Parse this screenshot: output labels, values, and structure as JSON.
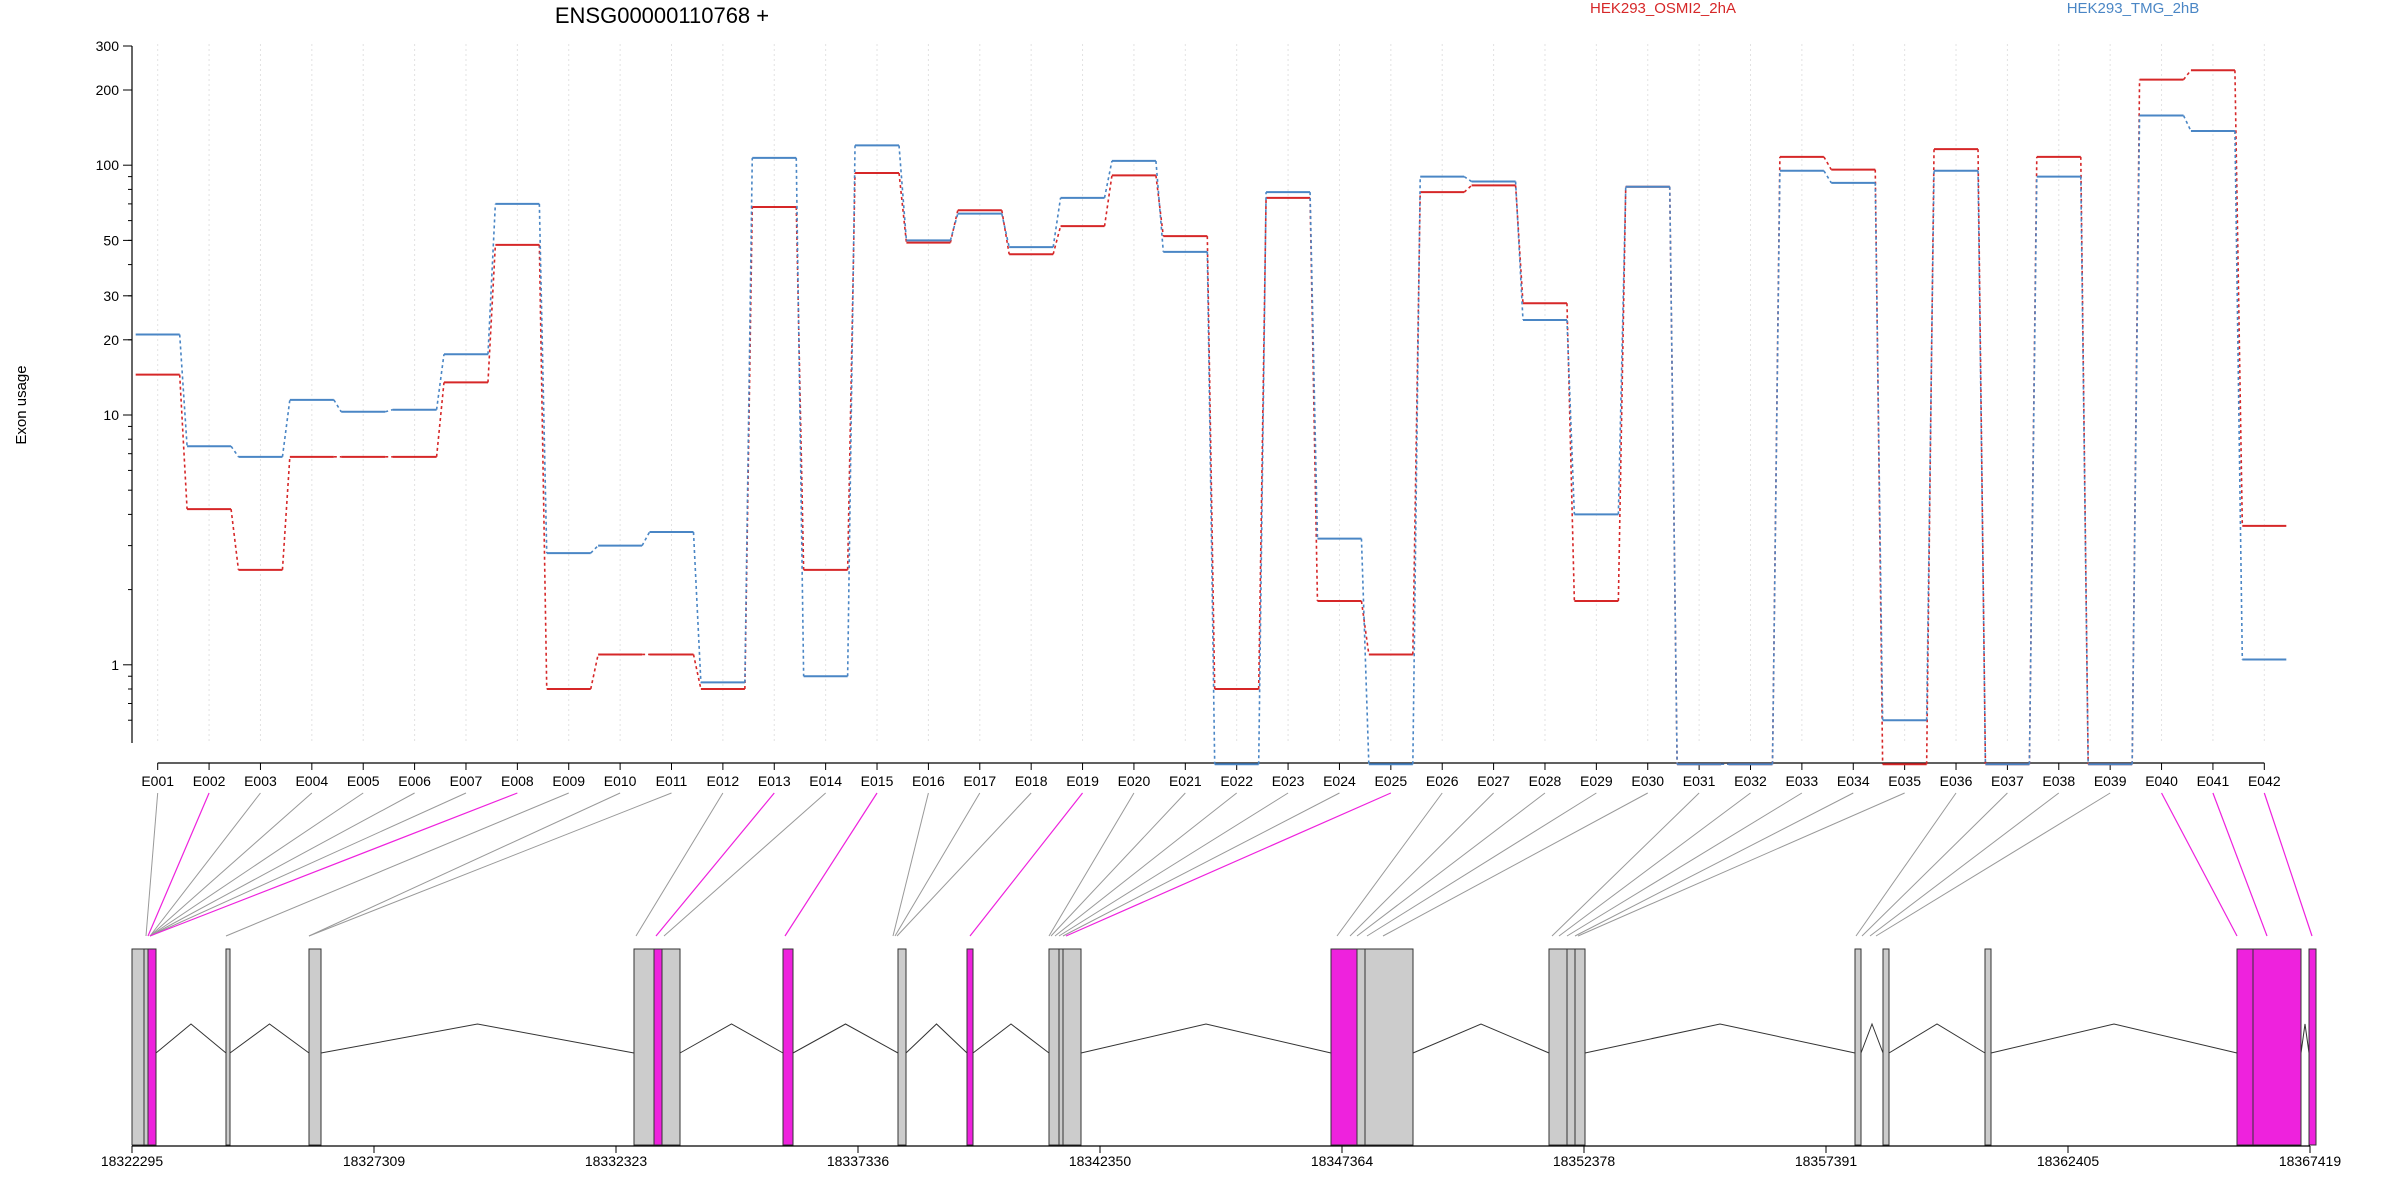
{
  "chart_data": {
    "type": "line",
    "title": "ENSG00000110768 +",
    "ylabel": "Exon usage",
    "yscale": "log",
    "ylim": [
      0.5,
      300
    ],
    "yticks_labeled": [
      1,
      10,
      20,
      30,
      50,
      100,
      200,
      300
    ],
    "categories": [
      "E001",
      "E002",
      "E003",
      "E004",
      "E005",
      "E006",
      "E007",
      "E008",
      "E009",
      "E010",
      "E011",
      "E012",
      "E013",
      "E014",
      "E015",
      "E016",
      "E017",
      "E018",
      "E019",
      "E020",
      "E021",
      "E022",
      "E023",
      "E024",
      "E025",
      "E026",
      "E027",
      "E028",
      "E029",
      "E030",
      "E031",
      "E032",
      "E033",
      "E034",
      "E035",
      "E036",
      "E037",
      "E038",
      "E039",
      "E040",
      "E041",
      "E042"
    ],
    "series": [
      {
        "name": "HEK293_OSMI2_2hA",
        "color": "#d62728",
        "values": [
          14.5,
          4.2,
          2.4,
          6.8,
          6.8,
          6.8,
          13.5,
          48,
          0.8,
          1.1,
          1.1,
          0.8,
          68,
          2.4,
          93,
          49,
          66,
          44,
          57,
          91,
          52,
          0.8,
          74,
          1.8,
          1.1,
          78,
          83,
          28,
          1.8,
          82,
          0.4,
          0.4,
          108,
          96,
          0.4,
          116,
          0.4,
          108,
          0.4,
          220,
          240,
          3.6
        ]
      },
      {
        "name": "HEK293_TMG_2hB",
        "color": "#4a86c5",
        "values": [
          21,
          7.5,
          6.8,
          11.5,
          10.3,
          10.5,
          17.5,
          70,
          2.8,
          3.0,
          3.4,
          0.85,
          107,
          0.9,
          120,
          50,
          64,
          47,
          74,
          104,
          45,
          0.4,
          78,
          3.2,
          0.4,
          90,
          86,
          24,
          4.0,
          82,
          0.4,
          0.4,
          95,
          85,
          0.6,
          95,
          0.4,
          90,
          0.4,
          158,
          137,
          1.05
        ]
      }
    ],
    "gene_coordinates": [
      "18322295",
      "18327309",
      "18332323",
      "18337336",
      "18342350",
      "18347364",
      "18352378",
      "18357391",
      "18362405",
      "18367419"
    ],
    "highlighted_exons": [
      "E002",
      "E008",
      "E013",
      "E015",
      "E019",
      "E025",
      "E040",
      "E041",
      "E042"
    ],
    "highlight_color": "#ee22dd",
    "legend_placement": "top"
  }
}
